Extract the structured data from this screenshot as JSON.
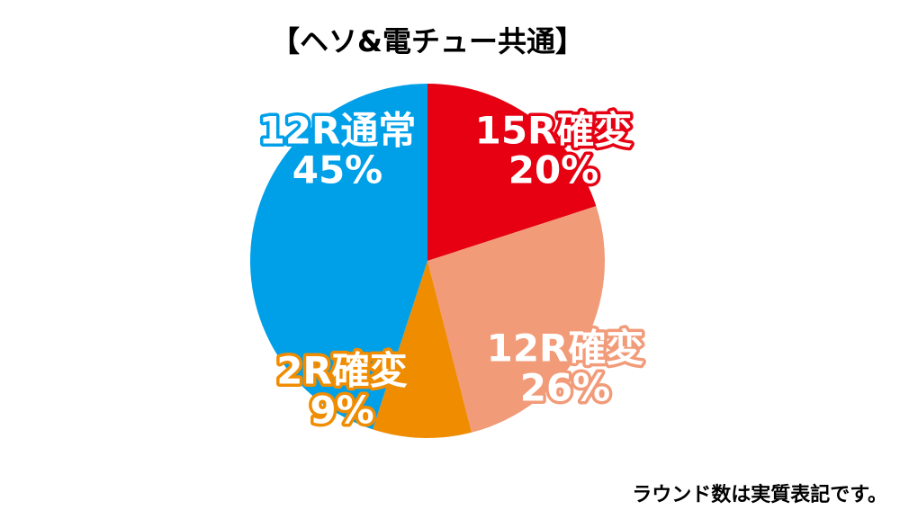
{
  "chart_data": {
    "type": "pie",
    "title": "【ヘソ&電チュー共通】",
    "categories": [
      "15R確変",
      "12R確変",
      "2R確変",
      "12R通常"
    ],
    "values": [
      20,
      26,
      9,
      45
    ],
    "value_labels": [
      "20%",
      "26%",
      "9%",
      "45%"
    ],
    "colors": [
      "#e60012",
      "#f19b79",
      "#f08c00",
      "#00a0e9"
    ],
    "note": "ラウンド数は実質表記です。"
  }
}
